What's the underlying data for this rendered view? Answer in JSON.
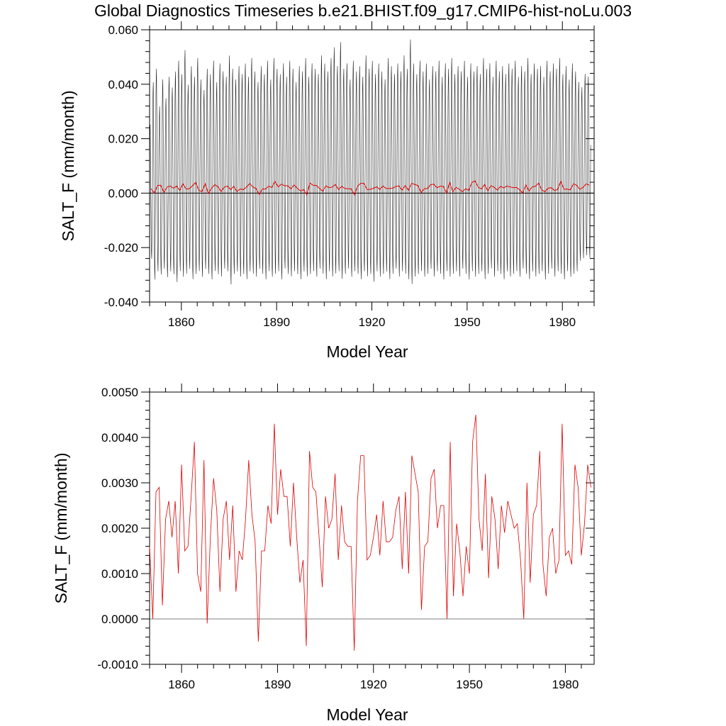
{
  "figure_title": "Global Diagnostics Timeseries b.e21.BHIST.f09_g17.CMIP6-hist-noLu.003",
  "colors": {
    "monthly": "#000000",
    "annual": "#e00000",
    "zero_line": "#000000"
  },
  "chart_data": [
    {
      "type": "line",
      "xlabel": "Model Year",
      "ylabel": "SALT_F (mm/month)",
      "xlim": [
        1850,
        1990
      ],
      "ylim": [
        -0.04,
        0.06
      ],
      "xticks": [
        1860,
        1890,
        1920,
        1950,
        1980
      ],
      "xtick_labels": [
        "1860",
        "1890",
        "1920",
        "1950",
        "1980"
      ],
      "yticks": [
        -0.04,
        -0.02,
        0.0,
        0.02,
        0.04,
        0.06
      ],
      "ytick_labels": [
        "-0.040",
        "-0.020",
        "0.000",
        "0.020",
        "0.040",
        "0.060"
      ],
      "reference_line": 0.0,
      "series": [
        {
          "style": "monthly (black, high-frequency oscillation)",
          "x_start_year": 1850,
          "annual_max": [
            0.026,
            0.042,
            0.047,
            0.033,
            0.043,
            0.036,
            0.044,
            0.04,
            0.046,
            0.05,
            0.045,
            0.054,
            0.041,
            0.048,
            0.044,
            0.051,
            0.043,
            0.039,
            0.047,
            0.045,
            0.05,
            0.042,
            0.049,
            0.046,
            0.044,
            0.052,
            0.047,
            0.043,
            0.048,
            0.045,
            0.049,
            0.044,
            0.051,
            0.046,
            0.042,
            0.048,
            0.045,
            0.05,
            0.043,
            0.051,
            0.047,
            0.045,
            0.049,
            0.044,
            0.05,
            0.047,
            0.042,
            0.048,
            0.046,
            0.051,
            0.044,
            0.049,
            0.047,
            0.045,
            0.052,
            0.049,
            0.046,
            0.051,
            0.055,
            0.048,
            0.057,
            0.047,
            0.049,
            0.043,
            0.05,
            0.046,
            0.048,
            0.044,
            0.052,
            0.047,
            0.05,
            0.045,
            0.049,
            0.046,
            0.043,
            0.051,
            0.048,
            0.045,
            0.049,
            0.046,
            0.052,
            0.047,
            0.058,
            0.049,
            0.045,
            0.05,
            0.046,
            0.049,
            0.043,
            0.048,
            0.046,
            0.05,
            0.044,
            0.049,
            0.047,
            0.051,
            0.045,
            0.048,
            0.046,
            0.05,
            0.044,
            0.049,
            0.046,
            0.048,
            0.045,
            0.051,
            0.047,
            0.049,
            0.044,
            0.05,
            0.046,
            0.048,
            0.045,
            0.049,
            0.047,
            0.05,
            0.044,
            0.048,
            0.046,
            0.051,
            0.045,
            0.049,
            0.047,
            0.048,
            0.044,
            0.05,
            0.046,
            0.049,
            0.047,
            0.051,
            0.045,
            0.048,
            0.043,
            0.049,
            0.046,
            0.042,
            0.04,
            0.045,
            0.044
          ],
          "annual_min": [
            -0.025,
            -0.033,
            -0.03,
            -0.031,
            -0.029,
            -0.032,
            -0.03,
            -0.031,
            -0.034,
            -0.03,
            -0.032,
            -0.031,
            -0.029,
            -0.033,
            -0.031,
            -0.03,
            -0.032,
            -0.029,
            -0.031,
            -0.033,
            -0.03,
            -0.031,
            -0.032,
            -0.029,
            -0.03,
            -0.035,
            -0.031,
            -0.03,
            -0.032,
            -0.031,
            -0.033,
            -0.03,
            -0.031,
            -0.032,
            -0.029,
            -0.031,
            -0.033,
            -0.03,
            -0.032,
            -0.031,
            -0.03,
            -0.033,
            -0.029,
            -0.031,
            -0.032,
            -0.03,
            -0.031,
            -0.033,
            -0.03,
            -0.032,
            -0.031,
            -0.03,
            -0.032,
            -0.029,
            -0.031,
            -0.033,
            -0.03,
            -0.032,
            -0.031,
            -0.03,
            -0.033,
            -0.031,
            -0.029,
            -0.032,
            -0.03,
            -0.031,
            -0.033,
            -0.03,
            -0.032,
            -0.031,
            -0.034,
            -0.03,
            -0.032,
            -0.031,
            -0.03,
            -0.033,
            -0.031,
            -0.029,
            -0.032,
            -0.03,
            -0.031,
            -0.033,
            -0.035,
            -0.032,
            -0.031,
            -0.03,
            -0.032,
            -0.031,
            -0.029,
            -0.032,
            -0.03,
            -0.031,
            -0.033,
            -0.03,
            -0.032,
            -0.031,
            -0.03,
            -0.032,
            -0.029,
            -0.031,
            -0.033,
            -0.03,
            -0.032,
            -0.031,
            -0.03,
            -0.033,
            -0.031,
            -0.029,
            -0.032,
            -0.03,
            -0.031,
            -0.033,
            -0.03,
            -0.032,
            -0.031,
            -0.03,
            -0.032,
            -0.029,
            -0.031,
            -0.033,
            -0.03,
            -0.032,
            -0.031,
            -0.03,
            -0.033,
            -0.031,
            -0.029,
            -0.032,
            -0.03,
            -0.031,
            -0.033,
            -0.03,
            -0.032,
            -0.031,
            -0.03,
            -0.026,
            -0.025,
            -0.024,
            -0.025
          ]
        },
        {
          "style": "annual mean (red)",
          "ref": "annual_mean"
        }
      ]
    },
    {
      "type": "line",
      "xlabel": "Model Year",
      "ylabel": "SALT_F (mm/month)",
      "xlim": [
        1850,
        1989
      ],
      "ylim": [
        -0.001,
        0.005
      ],
      "xticks": [
        1860,
        1890,
        1920,
        1950,
        1980
      ],
      "xtick_labels": [
        "1860",
        "1890",
        "1920",
        "1950",
        "1980"
      ],
      "yticks": [
        -0.001,
        0.0,
        0.001,
        0.002,
        0.003,
        0.004,
        0.005
      ],
      "ytick_labels": [
        "-0.0010",
        "0.0000",
        "0.0010",
        "0.0020",
        "0.0030",
        "0.0040",
        "0.0050"
      ],
      "reference_line": 0.0,
      "series": [
        {
          "style": "annual mean (red)",
          "x_start_year": 1850,
          "values": [
            0.0016,
            -0.0,
            0.0028,
            0.0029,
            0.0003,
            0.0022,
            0.0026,
            0.0018,
            0.0026,
            0.001,
            0.0034,
            0.0015,
            0.0016,
            0.0027,
            0.0039,
            0.001,
            0.0006,
            0.0035,
            -0.0001,
            0.0018,
            0.0031,
            0.0024,
            0.0006,
            0.0022,
            0.0026,
            0.0013,
            0.0025,
            0.0006,
            0.0015,
            0.0013,
            0.0022,
            0.0035,
            0.0023,
            0.0017,
            -0.0005,
            0.0015,
            0.0015,
            0.0025,
            0.0021,
            0.0043,
            0.0023,
            0.0033,
            0.0027,
            0.0027,
            0.0016,
            0.003,
            0.0018,
            0.0008,
            0.0013,
            -0.0006,
            0.0037,
            0.0029,
            0.0028,
            0.0018,
            0.0007,
            0.0027,
            0.002,
            0.0022,
            0.0032,
            0.0013,
            0.0025,
            0.0017,
            0.0016,
            0.0016,
            -0.0007,
            0.0026,
            0.0036,
            0.0036,
            0.0013,
            0.0014,
            0.0018,
            0.0023,
            0.0014,
            0.0026,
            0.0017,
            0.0017,
            0.0018,
            0.0024,
            0.0027,
            0.0011,
            0.0028,
            0.001,
            0.0036,
            0.0032,
            0.0028,
            0.0002,
            0.0016,
            0.0017,
            0.0031,
            0.0033,
            0.002,
            0.0025,
            0.0025,
            -0.0,
            0.0039,
            0.0005,
            0.0021,
            0.0015,
            0.0005,
            0.0016,
            0.001,
            0.0039,
            0.0045,
            0.0022,
            0.0015,
            0.0032,
            0.0009,
            0.0027,
            0.0022,
            0.0011,
            0.0025,
            0.0019,
            0.0026,
            0.0023,
            0.002,
            0.0021,
            0.0013,
            0.0,
            0.003,
            0.0008,
            0.0023,
            0.0025,
            0.0037,
            0.0012,
            0.0005,
            0.0018,
            0.002,
            0.001,
            0.0013,
            0.0043,
            0.0014,
            0.0015,
            0.0012,
            0.0034,
            0.0029,
            0.0014,
            0.0021,
            0.0034,
            0.0029
          ]
        }
      ]
    }
  ]
}
